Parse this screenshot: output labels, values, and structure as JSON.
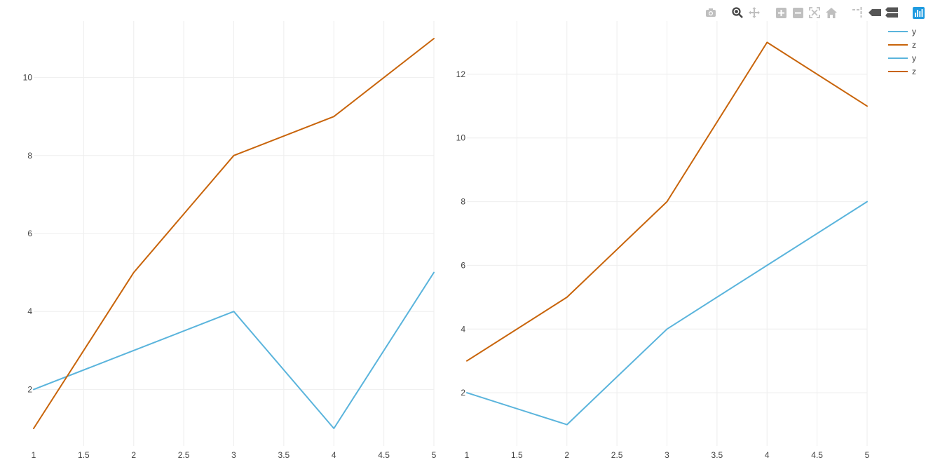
{
  "colors": {
    "series_y": "#5ab4dc",
    "series_z": "#c8640a",
    "grid": "#eeeeee",
    "text": "#444444",
    "modebar": "#bfbfbf",
    "modebar_logo": "#1f9be0"
  },
  "modebar": {
    "buttons": [
      "camera-icon",
      "zoom-icon",
      "pan-icon",
      "zoom-in-icon",
      "zoom-out-icon",
      "autoscale-icon",
      "reset-axes-icon",
      "spike-lines-icon",
      "hover-closest-icon",
      "hover-compare-icon",
      "plotly-logo-icon"
    ]
  },
  "legend": [
    {
      "name": "y",
      "series": "y"
    },
    {
      "name": "z",
      "series": "z"
    },
    {
      "name": "y",
      "series": "y"
    },
    {
      "name": "z",
      "series": "z"
    }
  ],
  "chart_data": [
    {
      "type": "line",
      "x": [
        1,
        2,
        3,
        4,
        5
      ],
      "series": [
        {
          "name": "y",
          "values": [
            2,
            3,
            4,
            1,
            5
          ]
        },
        {
          "name": "z",
          "values": [
            1,
            5,
            8,
            9,
            11
          ]
        }
      ],
      "xlim": [
        1,
        5
      ],
      "ylim": [
        0.55,
        11.45
      ],
      "xticks": [
        1,
        1.5,
        2,
        2.5,
        3,
        3.5,
        4,
        4.5,
        5
      ],
      "xtick_labels": [
        "1",
        "1.5",
        "2",
        "2.5",
        "3",
        "3.5",
        "4",
        "4.5",
        "5"
      ],
      "yticks": [
        2,
        4,
        6,
        8,
        10
      ],
      "ytick_labels": [
        "2",
        "4",
        "6",
        "8",
        "10"
      ],
      "grid": true
    },
    {
      "type": "line",
      "x": [
        1,
        2,
        3,
        4,
        5
      ],
      "series": [
        {
          "name": "y",
          "values": [
            2,
            1,
            4,
            6,
            8
          ]
        },
        {
          "name": "z",
          "values": [
            3,
            5,
            8,
            13,
            11
          ]
        }
      ],
      "xlim": [
        1,
        5
      ],
      "ylim": [
        0.33,
        13.67
      ],
      "xticks": [
        1,
        1.5,
        2,
        2.5,
        3,
        3.5,
        4,
        4.5,
        5
      ],
      "xtick_labels": [
        "1",
        "1.5",
        "2",
        "2.5",
        "3",
        "3.5",
        "4",
        "4.5",
        "5"
      ],
      "yticks": [
        2,
        4,
        6,
        8,
        10,
        12
      ],
      "ytick_labels": [
        "2",
        "4",
        "6",
        "8",
        "10",
        "12"
      ],
      "grid": true
    }
  ]
}
